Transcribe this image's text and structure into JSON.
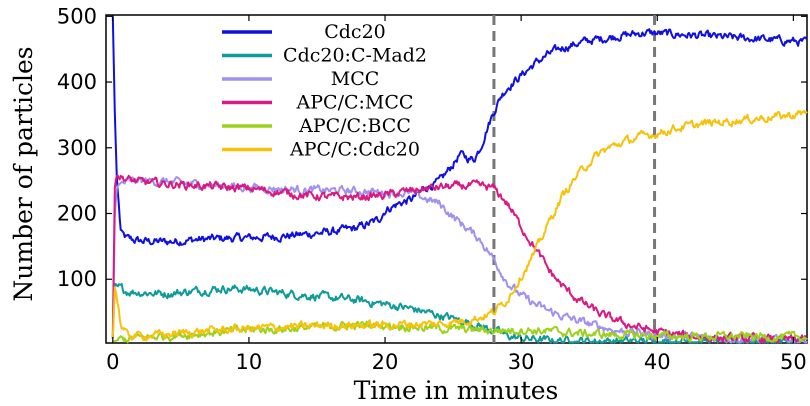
{
  "chart_data": {
    "type": "line",
    "xlabel": "Time in minutes",
    "ylabel": "Number of particles",
    "xlim": [
      -0.5,
      51
    ],
    "ylim": [
      3,
      502
    ],
    "xticks": [
      "0",
      "10",
      "20",
      "30",
      "40",
      "50"
    ],
    "yticks": [
      "100",
      "200",
      "300",
      "400",
      "500"
    ],
    "grid": false,
    "legend_position": "top-left",
    "vlines": [
      28,
      39.8
    ],
    "series": [
      {
        "name": "Cdc20",
        "color": "#1010e0",
        "x": [
          0,
          0.15,
          0.3,
          0.6,
          1,
          2,
          4,
          6,
          8,
          10,
          12,
          14,
          16,
          18,
          19.5,
          20,
          21,
          22,
          23,
          24,
          25,
          25.5,
          26,
          26.5,
          27,
          27.5,
          28,
          28.5,
          29,
          30,
          31,
          32,
          33,
          34,
          35,
          36,
          37,
          38,
          39,
          40,
          42,
          44,
          46,
          48,
          50,
          51
        ],
        "y": [
          500,
          350,
          250,
          170,
          162,
          158,
          157,
          160,
          162,
          163,
          165,
          168,
          172,
          178,
          190,
          205,
          215,
          222,
          240,
          248,
          275,
          290,
          285,
          282,
          300,
          330,
          355,
          378,
          392,
          410,
          428,
          442,
          452,
          458,
          463,
          466,
          470,
          472,
          475,
          474,
          472,
          469,
          467,
          465,
          462,
          460
        ]
      },
      {
        "name": "Cdc20:C-Mad2",
        "color": "#109a9a",
        "x": [
          0,
          0.15,
          0.3,
          1,
          2,
          4,
          6,
          8,
          10,
          12,
          14,
          16,
          18,
          20,
          22,
          24,
          26,
          28,
          29,
          30,
          32,
          35,
          40,
          45,
          50,
          51
        ],
        "y": [
          10,
          95,
          90,
          82,
          80,
          78,
          82,
          86,
          85,
          80,
          76,
          72,
          68,
          62,
          55,
          45,
          35,
          22,
          14,
          10,
          7,
          6,
          6,
          6,
          5,
          5
        ]
      },
      {
        "name": "MCC",
        "color": "#a090f0",
        "x": [
          0,
          0.15,
          0.3,
          1,
          2,
          4,
          6,
          8,
          10,
          12,
          14,
          16,
          18,
          20,
          22,
          24,
          25,
          26,
          27,
          28,
          29,
          30,
          31,
          32,
          33,
          35,
          37,
          40,
          43,
          46,
          50,
          51
        ],
        "y": [
          10,
          200,
          240,
          248,
          250,
          248,
          245,
          242,
          240,
          238,
          236,
          235,
          234,
          232,
          230,
          215,
          195,
          178,
          160,
          130,
          95,
          75,
          62,
          52,
          44,
          32,
          22,
          15,
          12,
          10,
          8,
          8
        ]
      },
      {
        "name": "APC/C:MCC",
        "color": "#d81a82",
        "x": [
          0,
          0.15,
          0.3,
          1,
          2,
          4,
          6,
          8,
          10,
          12,
          14,
          16,
          18,
          20,
          22,
          24,
          26,
          27,
          28,
          29,
          30,
          31,
          32,
          33,
          34,
          35,
          36,
          38,
          40,
          42,
          45,
          48,
          50,
          51
        ],
        "y": [
          10,
          245,
          258,
          252,
          248,
          245,
          243,
          240,
          238,
          233,
          228,
          225,
          225,
          228,
          235,
          240,
          242,
          242,
          238,
          215,
          180,
          148,
          115,
          90,
          72,
          58,
          45,
          30,
          20,
          14,
          10,
          9,
          8,
          8
        ]
      },
      {
        "name": "APC/C:BCC",
        "color": "#9cd21c",
        "x": [
          0,
          0.5,
          1,
          2,
          4,
          6,
          8,
          10,
          12,
          14,
          16,
          18,
          20,
          22,
          24,
          26,
          28,
          30,
          32,
          34,
          36,
          38,
          40,
          42,
          45,
          50,
          51
        ],
        "y": [
          5,
          8,
          9,
          11,
          14,
          17,
          20,
          23,
          24,
          26,
          28,
          30,
          30,
          28,
          25,
          24,
          22,
          23,
          21,
          18,
          16,
          15,
          14,
          13,
          13,
          12,
          12
        ]
      },
      {
        "name": "APC/C:Cdc20",
        "color": "#f7c20c",
        "x": [
          0,
          0.15,
          0.3,
          0.6,
          1,
          2,
          4,
          6,
          8,
          10,
          12,
          14,
          16,
          18,
          20,
          22,
          24,
          26,
          27,
          28,
          29,
          30,
          31,
          32,
          33,
          34,
          35,
          36,
          37,
          38,
          39,
          40,
          41,
          42,
          44,
          46,
          48,
          50,
          51
        ],
        "y": [
          10,
          90,
          70,
          30,
          15,
          14,
          16,
          20,
          23,
          25,
          27,
          28,
          30,
          30,
          30,
          32,
          32,
          38,
          42,
          50,
          70,
          105,
          140,
          185,
          225,
          255,
          278,
          295,
          305,
          312,
          318,
          322,
          328,
          332,
          338,
          342,
          346,
          350,
          354
        ]
      }
    ]
  }
}
